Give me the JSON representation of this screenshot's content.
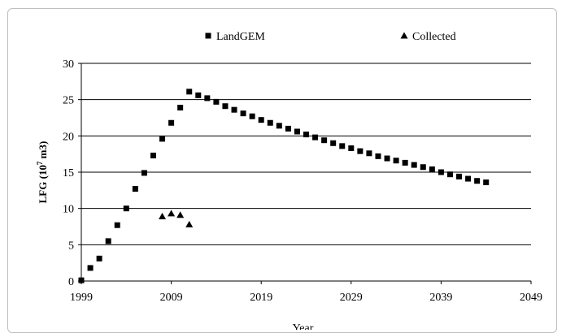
{
  "chart_data": {
    "type": "scatter",
    "title": "",
    "xlabel": "Year",
    "ylabel": "LFG (10^7 m3)",
    "ylabel_base": "LFG (10",
    "ylabel_sup": "7",
    "ylabel_tail": " m3)",
    "xlim": [
      1999,
      2049
    ],
    "ylim": [
      0,
      30
    ],
    "x_ticks": [
      1999,
      2009,
      2019,
      2029,
      2039,
      2049
    ],
    "y_ticks": [
      0,
      5,
      10,
      15,
      20,
      25,
      30
    ],
    "grid": "horizontal",
    "legend_position": "top",
    "series": [
      {
        "name": "LandGEM",
        "marker": "square",
        "color": "#000000",
        "points": [
          [
            1999,
            0.1
          ],
          [
            2000,
            1.8
          ],
          [
            2001,
            3.1
          ],
          [
            2002,
            5.5
          ],
          [
            2003,
            7.7
          ],
          [
            2004,
            10.0
          ],
          [
            2005,
            12.7
          ],
          [
            2006,
            14.9
          ],
          [
            2007,
            17.3
          ],
          [
            2008,
            19.6
          ],
          [
            2009,
            21.8
          ],
          [
            2010,
            23.9
          ],
          [
            2011,
            26.1
          ],
          [
            2012,
            25.6
          ],
          [
            2013,
            25.2
          ],
          [
            2014,
            24.7
          ],
          [
            2015,
            24.1
          ],
          [
            2016,
            23.6
          ],
          [
            2017,
            23.1
          ],
          [
            2018,
            22.7
          ],
          [
            2019,
            22.2
          ],
          [
            2020,
            21.8
          ],
          [
            2021,
            21.4
          ],
          [
            2022,
            21.0
          ],
          [
            2023,
            20.6
          ],
          [
            2024,
            20.2
          ],
          [
            2025,
            19.8
          ],
          [
            2026,
            19.4
          ],
          [
            2027,
            19.0
          ],
          [
            2028,
            18.6
          ],
          [
            2029,
            18.3
          ],
          [
            2030,
            17.9
          ],
          [
            2031,
            17.6
          ],
          [
            2032,
            17.2
          ],
          [
            2033,
            16.9
          ],
          [
            2034,
            16.6
          ],
          [
            2035,
            16.3
          ],
          [
            2036,
            16.0
          ],
          [
            2037,
            15.7
          ],
          [
            2038,
            15.4
          ],
          [
            2039,
            15.0
          ],
          [
            2040,
            14.7
          ],
          [
            2041,
            14.4
          ],
          [
            2042,
            14.1
          ],
          [
            2043,
            13.8
          ],
          [
            2044,
            13.6
          ]
        ]
      },
      {
        "name": "Collected",
        "marker": "triangle",
        "color": "#000000",
        "points": [
          [
            2008,
            8.9
          ],
          [
            2009,
            9.3
          ],
          [
            2010,
            9.1
          ],
          [
            2011,
            7.8
          ]
        ]
      }
    ]
  }
}
